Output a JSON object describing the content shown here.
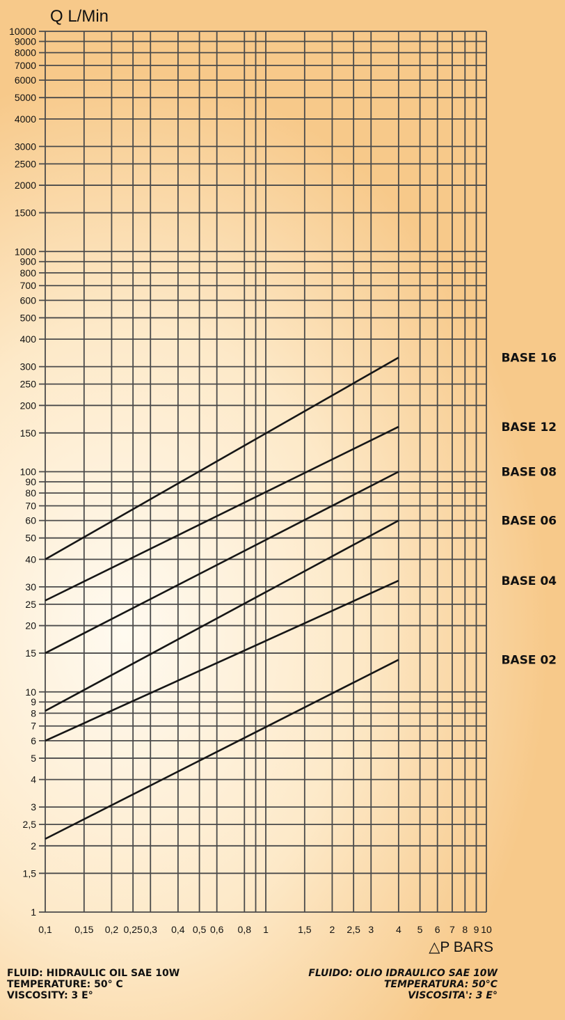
{
  "chart_data": {
    "type": "line",
    "title": "",
    "ylabel": "Q L/Min",
    "xlabel": "△P BARS",
    "x_scale": "log",
    "y_scale": "log",
    "xlim": [
      0.1,
      10
    ],
    "ylim": [
      1,
      10000
    ],
    "grid": true,
    "legend": "right, labels next to each line",
    "x_ticks": [
      {
        "v": 0.1,
        "label": "0,1"
      },
      {
        "v": 0.15,
        "label": "0,15"
      },
      {
        "v": 0.2,
        "label": "0,2"
      },
      {
        "v": 0.25,
        "label": "0,25"
      },
      {
        "v": 0.3,
        "label": "0,3"
      },
      {
        "v": 0.4,
        "label": "0,4"
      },
      {
        "v": 0.5,
        "label": "0,5"
      },
      {
        "v": 0.6,
        "label": "0,6"
      },
      {
        "v": 0.8,
        "label": "0,8"
      },
      {
        "v": 0.9,
        "label": ""
      },
      {
        "v": 1,
        "label": "1"
      },
      {
        "v": 1.5,
        "label": "1,5"
      },
      {
        "v": 2,
        "label": "2"
      },
      {
        "v": 2.5,
        "label": "2,5"
      },
      {
        "v": 3,
        "label": "3"
      },
      {
        "v": 4,
        "label": "4"
      },
      {
        "v": 5,
        "label": "5"
      },
      {
        "v": 6,
        "label": "6"
      },
      {
        "v": 7,
        "label": "7"
      },
      {
        "v": 8,
        "label": "8"
      },
      {
        "v": 9,
        "label": "9"
      },
      {
        "v": 10,
        "label": "10"
      }
    ],
    "y_ticks": [
      {
        "v": 1,
        "label": "1"
      },
      {
        "v": 1.5,
        "label": "1,5"
      },
      {
        "v": 2,
        "label": "2"
      },
      {
        "v": 2.5,
        "label": "2,5"
      },
      {
        "v": 3,
        "label": "3"
      },
      {
        "v": 4,
        "label": "4"
      },
      {
        "v": 5,
        "label": "5"
      },
      {
        "v": 6,
        "label": "6"
      },
      {
        "v": 7,
        "label": "7"
      },
      {
        "v": 8,
        "label": "8"
      },
      {
        "v": 9,
        "label": "9"
      },
      {
        "v": 10,
        "label": "10"
      },
      {
        "v": 15,
        "label": "15"
      },
      {
        "v": 20,
        "label": "20"
      },
      {
        "v": 25,
        "label": "25"
      },
      {
        "v": 30,
        "label": "30"
      },
      {
        "v": 40,
        "label": "40"
      },
      {
        "v": 50,
        "label": "50"
      },
      {
        "v": 60,
        "label": "60"
      },
      {
        "v": 70,
        "label": "70"
      },
      {
        "v": 80,
        "label": "80"
      },
      {
        "v": 90,
        "label": "90"
      },
      {
        "v": 100,
        "label": "100"
      },
      {
        "v": 150,
        "label": "150"
      },
      {
        "v": 200,
        "label": "200"
      },
      {
        "v": 250,
        "label": "250"
      },
      {
        "v": 300,
        "label": "300"
      },
      {
        "v": 400,
        "label": "400"
      },
      {
        "v": 500,
        "label": "500"
      },
      {
        "v": 600,
        "label": "600"
      },
      {
        "v": 700,
        "label": "700"
      },
      {
        "v": 800,
        "label": "800"
      },
      {
        "v": 900,
        "label": "900"
      },
      {
        "v": 1000,
        "label": "1000"
      },
      {
        "v": 1500,
        "label": "1500"
      },
      {
        "v": 2000,
        "label": "2000"
      },
      {
        "v": 2500,
        "label": "2500"
      },
      {
        "v": 3000,
        "label": "3000"
      },
      {
        "v": 4000,
        "label": "4000"
      },
      {
        "v": 5000,
        "label": "5000"
      },
      {
        "v": 6000,
        "label": "6000"
      },
      {
        "v": 7000,
        "label": "7000"
      },
      {
        "v": 8000,
        "label": "8000"
      },
      {
        "v": 9000,
        "label": "9000"
      },
      {
        "v": 10000,
        "label": "10000"
      }
    ],
    "series": [
      {
        "name": "BASE 16",
        "x": [
          0.1,
          4
        ],
        "y": [
          40,
          330
        ]
      },
      {
        "name": "BASE 12",
        "x": [
          0.1,
          4
        ],
        "y": [
          26,
          160
        ]
      },
      {
        "name": "BASE 08",
        "x": [
          0.1,
          4
        ],
        "y": [
          15,
          100
        ]
      },
      {
        "name": "BASE 06",
        "x": [
          0.1,
          4
        ],
        "y": [
          8.2,
          60
        ]
      },
      {
        "name": "BASE 04",
        "x": [
          0.1,
          4
        ],
        "y": [
          6,
          32
        ]
      },
      {
        "name": "BASE 02",
        "x": [
          0.1,
          4
        ],
        "y": [
          2.15,
          14
        ]
      }
    ]
  },
  "notes": {
    "english": [
      "FLUID: HIDRAULIC OIL SAE 10W",
      "TEMPERATURE: 50° C",
      "VISCOSITY: 3 E°"
    ],
    "italian": [
      "FLUIDO: OLIO IDRAULICO SAE 10W",
      "TEMPERATURA: 50°C",
      "VISCOSITA': 3 E°"
    ]
  }
}
